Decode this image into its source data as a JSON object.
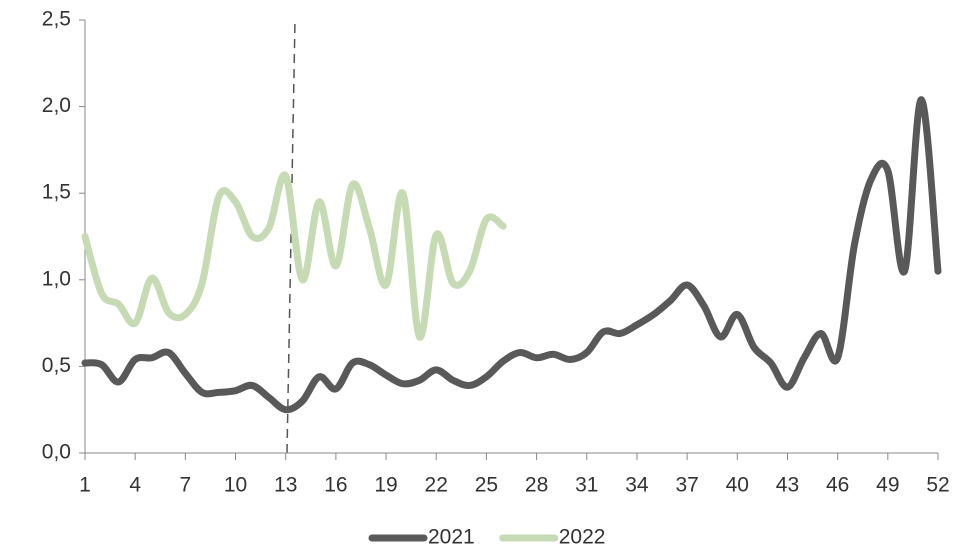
{
  "chart_data": {
    "type": "line",
    "x": [
      1,
      2,
      3,
      4,
      5,
      6,
      7,
      8,
      9,
      10,
      11,
      12,
      13,
      14,
      15,
      16,
      17,
      18,
      19,
      20,
      21,
      22,
      23,
      24,
      25,
      26,
      27,
      28,
      29,
      30,
      31,
      32,
      33,
      34,
      35,
      36,
      37,
      38,
      39,
      40,
      41,
      42,
      43,
      44,
      45,
      46,
      47,
      48,
      49,
      50,
      51,
      52
    ],
    "series": [
      {
        "name": "2021",
        "color": "#595959",
        "values": [
          0.52,
          0.51,
          0.41,
          0.54,
          0.55,
          0.58,
          0.46,
          0.35,
          0.35,
          0.36,
          0.39,
          0.32,
          0.25,
          0.3,
          0.44,
          0.37,
          0.52,
          0.51,
          0.45,
          0.4,
          0.42,
          0.48,
          0.42,
          0.39,
          0.44,
          0.53,
          0.58,
          0.55,
          0.57,
          0.54,
          0.58,
          0.7,
          0.69,
          0.74,
          0.8,
          0.88,
          0.97,
          0.85,
          0.67,
          0.8,
          0.61,
          0.52,
          0.38,
          0.55,
          0.69,
          0.55,
          1.2,
          1.58,
          1.63,
          1.05,
          2.04,
          1.05
        ]
      },
      {
        "name": "2022",
        "color": "#c6dab4",
        "values": [
          1.25,
          0.92,
          0.86,
          0.75,
          1.01,
          0.81,
          0.8,
          0.98,
          1.48,
          1.45,
          1.25,
          1.3,
          1.6,
          1.0,
          1.45,
          1.08,
          1.55,
          1.3,
          0.97,
          1.5,
          0.67,
          1.26,
          0.98,
          1.05,
          1.35,
          1.31,
          null,
          null,
          null,
          null,
          null,
          null,
          null,
          null,
          null,
          null,
          null,
          null,
          null,
          null,
          null,
          null,
          null,
          null,
          null,
          null,
          null,
          null,
          null,
          null,
          null,
          null
        ]
      }
    ],
    "xlim": [
      1,
      52
    ],
    "xticks": [
      1,
      4,
      7,
      10,
      13,
      16,
      19,
      22,
      25,
      28,
      31,
      34,
      37,
      40,
      43,
      46,
      49,
      52
    ],
    "ylim": [
      0,
      2.5
    ],
    "yticks": [
      {
        "value": 0,
        "label": "0,0"
      },
      {
        "value": 0.5,
        "label": "0,5"
      },
      {
        "value": 1,
        "label": "1,0"
      },
      {
        "value": 1.5,
        "label": "1,5"
      },
      {
        "value": 2,
        "label": "2,0"
      },
      {
        "value": 2.5,
        "label": "2,5"
      }
    ],
    "legend": "bottom"
  }
}
